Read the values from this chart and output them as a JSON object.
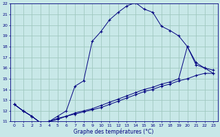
{
  "xlabel": "Graphe des températures (°C)",
  "background_color": "#c8e8e8",
  "grid_color": "#a0c8c0",
  "line_color": "#000080",
  "xlim": [
    -0.5,
    23.5
  ],
  "ylim": [
    11,
    22
  ],
  "yticks": [
    11,
    12,
    13,
    14,
    15,
    16,
    17,
    18,
    19,
    20,
    21,
    22
  ],
  "xticks": [
    0,
    1,
    2,
    3,
    4,
    5,
    6,
    7,
    8,
    9,
    10,
    11,
    12,
    13,
    14,
    15,
    16,
    17,
    18,
    19,
    20,
    21,
    22,
    23
  ],
  "series": {
    "main": {
      "x": [
        0,
        1,
        2,
        3,
        4,
        5,
        6,
        7,
        8,
        9,
        10,
        11,
        12,
        13,
        14,
        15,
        16,
        17,
        18,
        19,
        20,
        21,
        22,
        23
      ],
      "y": [
        12.6,
        12.0,
        11.5,
        10.9,
        11.0,
        11.5,
        12.0,
        14.3,
        14.8,
        18.5,
        19.4,
        20.5,
        21.2,
        21.8,
        22.1,
        21.5,
        21.2,
        19.9,
        19.5,
        19.0,
        18.0,
        16.3,
        16.0,
        15.8
      ]
    },
    "line2": {
      "x": [
        0,
        1,
        2,
        3,
        4,
        5,
        6,
        7,
        8,
        9,
        10,
        11,
        12,
        13,
        14,
        15,
        16,
        17,
        18,
        19,
        20,
        21,
        22,
        23
      ],
      "y": [
        12.6,
        12.0,
        11.5,
        10.9,
        11.0,
        11.3,
        11.5,
        11.8,
        12.0,
        12.2,
        12.5,
        12.8,
        13.1,
        13.4,
        13.7,
        14.0,
        14.2,
        14.5,
        14.7,
        15.0,
        18.0,
        16.5,
        16.0,
        15.5
      ]
    },
    "line3": {
      "x": [
        0,
        1,
        2,
        3,
        4,
        5,
        6,
        7,
        8,
        9,
        10,
        11,
        12,
        13,
        14,
        15,
        16,
        17,
        18,
        19,
        20,
        21,
        22,
        23
      ],
      "y": [
        12.6,
        12.0,
        11.5,
        10.9,
        11.0,
        11.2,
        11.5,
        11.7,
        11.9,
        12.1,
        12.3,
        12.6,
        12.9,
        13.2,
        13.5,
        13.8,
        14.0,
        14.3,
        14.5,
        14.8,
        15.0,
        15.3,
        15.5,
        15.5
      ]
    }
  }
}
